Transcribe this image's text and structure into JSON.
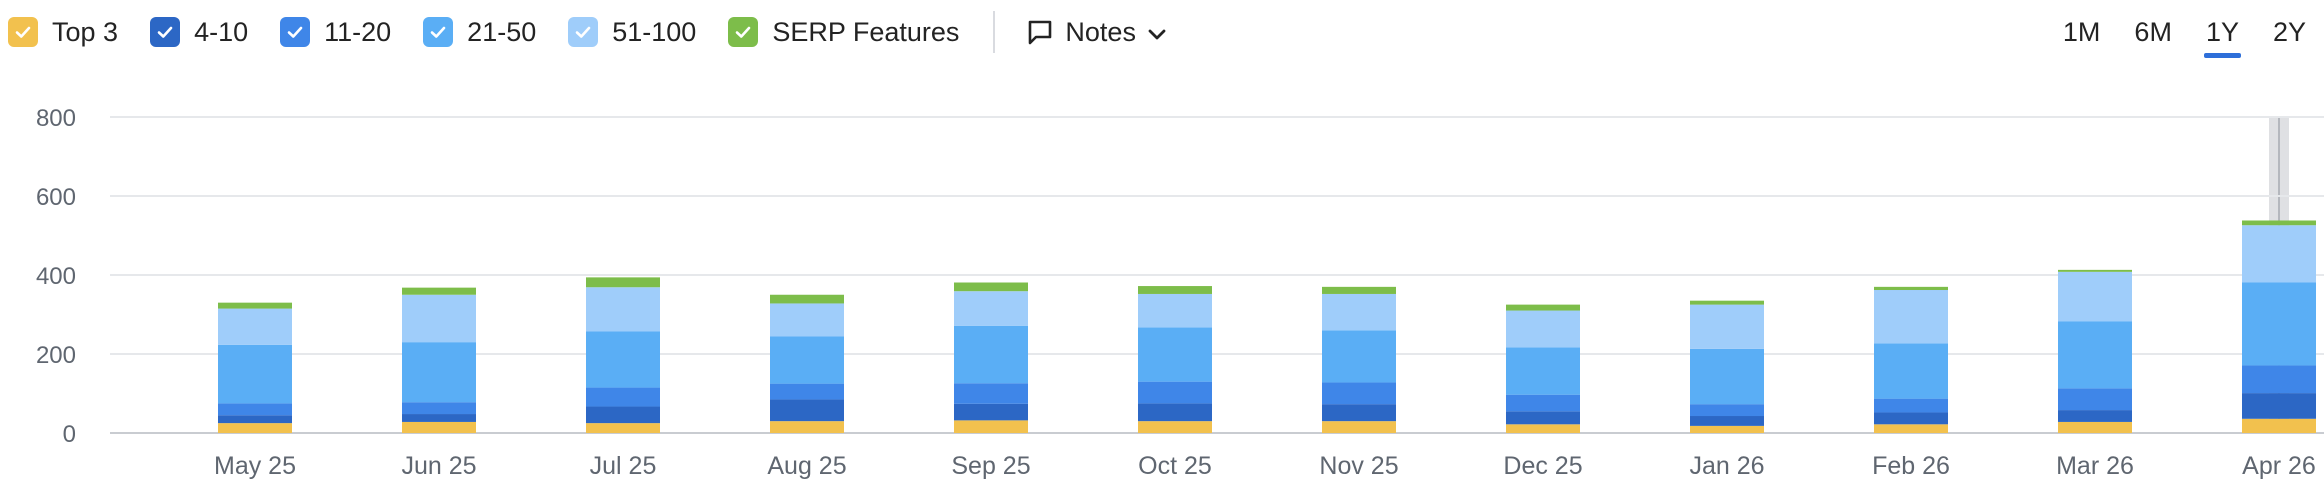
{
  "legend": [
    {
      "label": "Top 3",
      "color": "#f2c14e",
      "checked": true
    },
    {
      "label": "4-10",
      "color": "#2c67c5",
      "checked": true
    },
    {
      "label": "11-20",
      "color": "#3f86e8",
      "checked": true
    },
    {
      "label": "21-50",
      "color": "#5aaef5",
      "checked": true
    },
    {
      "label": "51-100",
      "color": "#9fcdfa",
      "checked": true
    },
    {
      "label": "SERP Features",
      "color": "#7dbd4a",
      "checked": true
    }
  ],
  "notes": {
    "label": "Notes"
  },
  "ranges": [
    {
      "label": "1M",
      "active": false
    },
    {
      "label": "6M",
      "active": false
    },
    {
      "label": "1Y",
      "active": true
    },
    {
      "label": "2Y",
      "active": false
    }
  ],
  "chart_data": {
    "type": "bar",
    "stacked": true,
    "categories": [
      "May 25",
      "Jun 25",
      "Jul 25",
      "Aug 25",
      "Sep 25",
      "Oct 25",
      "Nov 25",
      "Dec 25",
      "Jan 26",
      "Feb 26",
      "Mar 26",
      "Apr 26"
    ],
    "ylim": [
      0,
      800
    ],
    "yticks": [
      0,
      200,
      400,
      600,
      800
    ],
    "grid": true,
    "highlighted_category": "Apr 26",
    "series": [
      {
        "name": "Top 3",
        "color": "#f2c14e",
        "values": [
          25,
          28,
          25,
          30,
          32,
          30,
          30,
          22,
          18,
          22,
          28,
          36
        ]
      },
      {
        "name": "4-10",
        "color": "#2c67c5",
        "values": [
          20,
          20,
          42,
          55,
          42,
          45,
          43,
          33,
          25,
          30,
          30,
          65
        ]
      },
      {
        "name": "11-20",
        "color": "#3f86e8",
        "values": [
          30,
          30,
          48,
          40,
          52,
          55,
          55,
          42,
          30,
          35,
          55,
          70
        ]
      },
      {
        "name": "21-50",
        "color": "#5aaef5",
        "values": [
          148,
          152,
          142,
          120,
          145,
          137,
          132,
          120,
          140,
          140,
          170,
          210
        ]
      },
      {
        "name": "51-100",
        "color": "#9fcdfa",
        "values": [
          92,
          120,
          112,
          83,
          88,
          85,
          92,
          93,
          112,
          135,
          125,
          145
        ]
      },
      {
        "name": "SERP Features",
        "color": "#7dbd4a",
        "values": [
          15,
          18,
          25,
          22,
          22,
          20,
          18,
          15,
          10,
          8,
          5,
          12
        ]
      }
    ]
  }
}
